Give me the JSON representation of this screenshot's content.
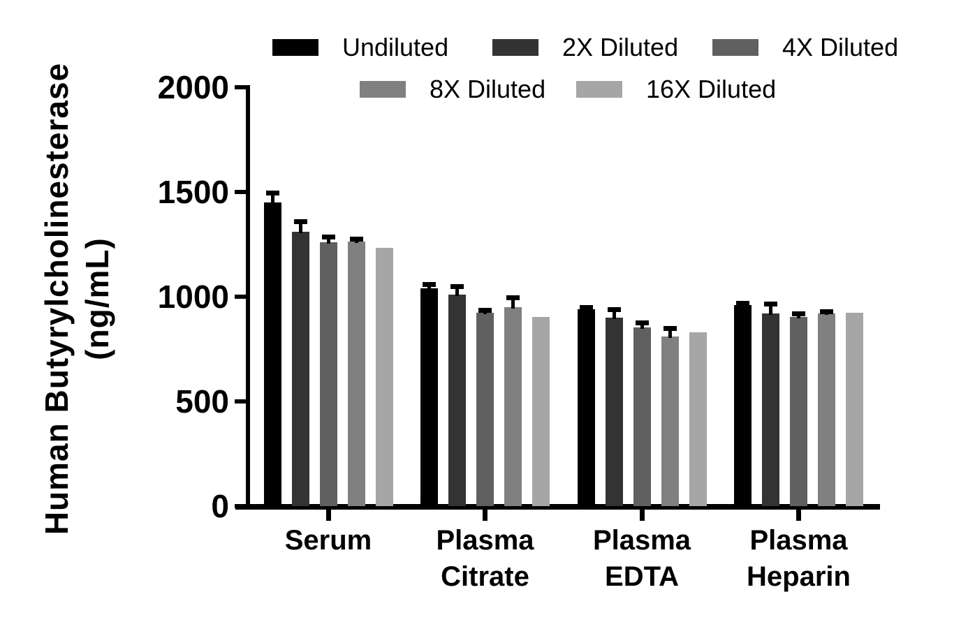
{
  "chart_data": {
    "type": "bar",
    "title": "",
    "ylabel": "Human Butyrylcholinesterase (ng/mL)",
    "ylabel_lines": [
      "Human Butyrylcholinesterase",
      "(ng/mL)"
    ],
    "xlabel": "",
    "ylim": [
      0,
      2000
    ],
    "yticks": [
      0,
      500,
      1000,
      1500,
      2000
    ],
    "grid": false,
    "legend_position": "top",
    "legend_rows": [
      [
        "Undiluted",
        "2X Diluted",
        "4X Diluted"
      ],
      [
        "8X Diluted",
        "16X Diluted"
      ]
    ],
    "categories": [
      "Serum",
      "Plasma Citrate",
      "Plasma EDTA",
      "Plasma Heparin"
    ],
    "category_label_lines": [
      [
        "Serum"
      ],
      [
        "Plasma",
        "Citrate"
      ],
      [
        "Plasma",
        "EDTA"
      ],
      [
        "Plasma",
        "Heparin"
      ]
    ],
    "series": [
      {
        "name": "Undiluted",
        "color": "#000000",
        "values": [
          1450,
          1040,
          940,
          960
        ],
        "errors_plus": [
          50,
          25,
          15,
          15
        ]
      },
      {
        "name": "2X Diluted",
        "color": "#333333",
        "values": [
          1310,
          1010,
          900,
          920
        ],
        "errors_plus": [
          55,
          45,
          45,
          50
        ]
      },
      {
        "name": "4X Diluted",
        "color": "#606060",
        "values": [
          1260,
          925,
          855,
          905
        ],
        "errors_plus": [
          30,
          15,
          25,
          20
        ]
      },
      {
        "name": "8X Diluted",
        "color": "#808080",
        "values": [
          1265,
          950,
          810,
          920
        ],
        "errors_plus": [
          15,
          50,
          45,
          15
        ]
      },
      {
        "name": "16X Diluted",
        "color": "#a6a6a6",
        "values": [
          1235,
          905,
          830,
          925
        ],
        "errors_plus": [
          0,
          0,
          0,
          0
        ]
      }
    ],
    "error_bar_color": "#000000",
    "axis_color": "#000000",
    "background_color": "#ffffff"
  }
}
